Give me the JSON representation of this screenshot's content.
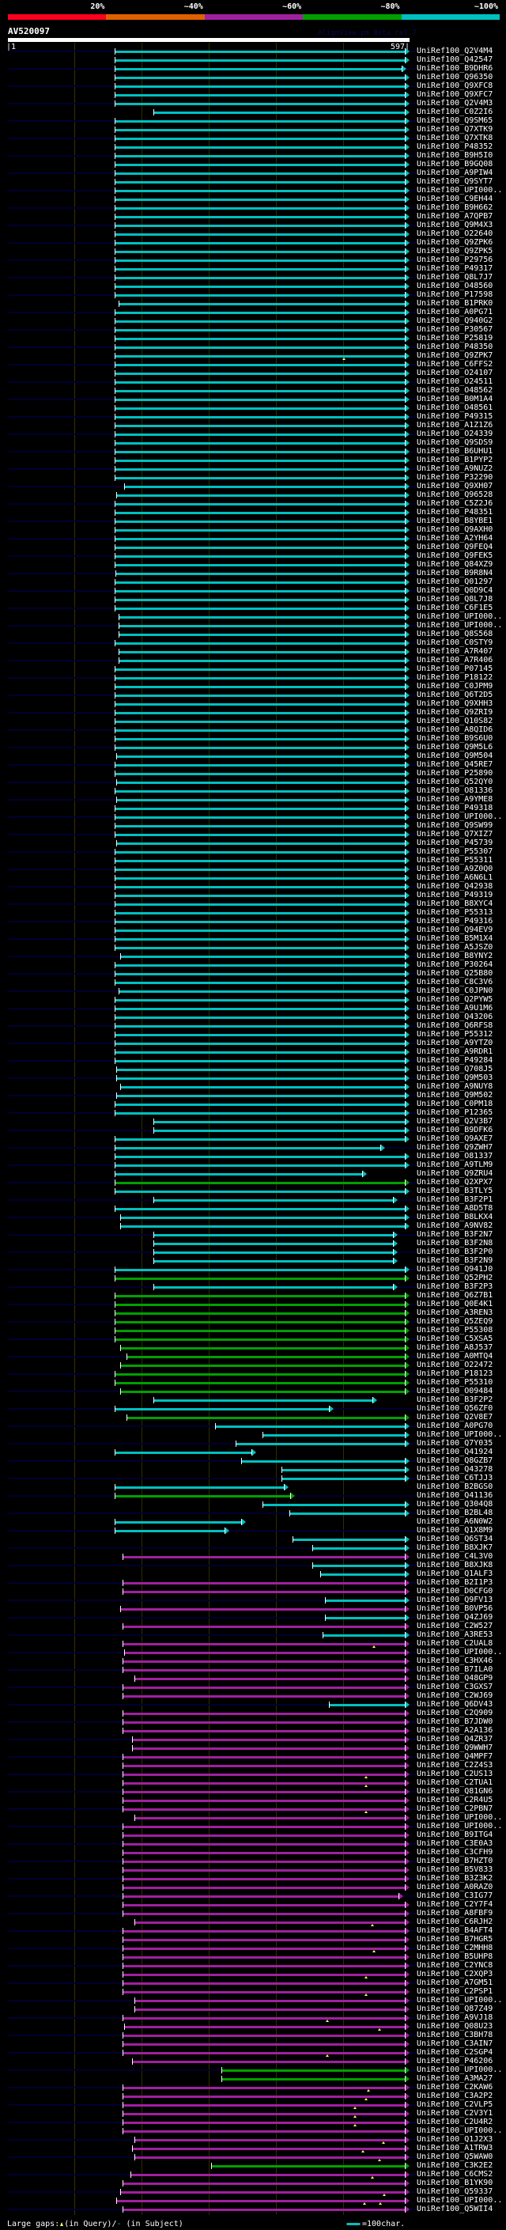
{
  "header": {
    "percent_labels": [
      "20%",
      "~40%",
      "~60%",
      "~80%",
      "~100%"
    ],
    "legend_colors": [
      "#ff0020",
      "#e06000",
      "#a020a0",
      "#00a000",
      "#00c0c0"
    ],
    "query_name": "AV520097",
    "credit": "AlignView.pm Beta rel.7",
    "query_start": "|1",
    "query_end": "597|",
    "query_length": 597
  },
  "colors": {
    "c": "#00c0c0",
    "g": "#00a000",
    "m": "#a020a0"
  },
  "rows": [
    [
      "UniRef100_Q2V4M4",
      "c",
      160,
      591
    ],
    [
      "UniRef100_Q42547",
      "c",
      160,
      591
    ],
    [
      "UniRef100_B9DHR6",
      "c",
      160,
      587
    ],
    [
      "UniRef100_Q96350",
      "c",
      160,
      591
    ],
    [
      "UniRef100_Q9XFC8",
      "c",
      160,
      591
    ],
    [
      "UniRef100_Q9XFC7",
      "c",
      160,
      591
    ],
    [
      "UniRef100_Q2V4M3",
      "c",
      160,
      591
    ],
    [
      "UniRef100_C0Z2I6",
      "c",
      217,
      591
    ],
    [
      "UniRef100_Q9SM65",
      "c",
      160,
      591
    ],
    [
      "UniRef100_Q7XTK9",
      "c",
      160,
      591
    ],
    [
      "UniRef100_Q7XTK8",
      "c",
      160,
      591
    ],
    [
      "UniRef100_P48352",
      "c",
      160,
      591
    ],
    [
      "UniRef100_B9H5I0",
      "c",
      160,
      591
    ],
    [
      "UniRef100_B9GQ08",
      "c",
      160,
      591
    ],
    [
      "UniRef100_A9PIW4",
      "c",
      160,
      591
    ],
    [
      "UniRef100_Q9SYT7",
      "c",
      160,
      591
    ],
    [
      "UniRef100_UPI000..",
      "c",
      160,
      591
    ],
    [
      "UniRef100_C9EH44",
      "c",
      160,
      591
    ],
    [
      "UniRef100_B9H662",
      "c",
      160,
      591
    ],
    [
      "UniRef100_A7QPB7",
      "c",
      160,
      591
    ],
    [
      "UniRef100_Q9M4X3",
      "c",
      160,
      591
    ],
    [
      "UniRef100_O22640",
      "c",
      160,
      591
    ],
    [
      "UniRef100_Q9ZPK6",
      "c",
      160,
      591
    ],
    [
      "UniRef100_Q9ZPK5",
      "c",
      160,
      591
    ],
    [
      "UniRef100_P29756",
      "c",
      160,
      591
    ],
    [
      "UniRef100_P49317",
      "c",
      160,
      591
    ],
    [
      "UniRef100_Q8L7J7",
      "c",
      160,
      591
    ],
    [
      "UniRef100_O48560",
      "c",
      160,
      591
    ],
    [
      "UniRef100_P17598",
      "c",
      160,
      591
    ],
    [
      "UniRef100_B1PRK0",
      "c",
      166,
      591
    ],
    [
      "UniRef100_A0PG71",
      "c",
      160,
      591
    ],
    [
      "UniRef100_Q940G2",
      "c",
      160,
      591
    ],
    [
      "UniRef100_P30567",
      "c",
      160,
      591
    ],
    [
      "UniRef100_P25819",
      "c",
      160,
      591
    ],
    [
      "UniRef100_P48350",
      "c",
      160,
      591
    ],
    [
      "UniRef100_Q9ZPK7",
      "c",
      160,
      591,
      [
        501
      ]
    ],
    [
      "UniRef100_C6FFS2",
      "c",
      160,
      591
    ],
    [
      "UniRef100_O24107",
      "c",
      160,
      591
    ],
    [
      "UniRef100_O24511",
      "c",
      160,
      591
    ],
    [
      "UniRef100_O48562",
      "c",
      160,
      591
    ],
    [
      "UniRef100_B0M1A4",
      "c",
      160,
      591
    ],
    [
      "UniRef100_O48561",
      "c",
      160,
      591
    ],
    [
      "UniRef100_P49315",
      "c",
      160,
      591
    ],
    [
      "UniRef100_A1Z1Z6",
      "c",
      160,
      591
    ],
    [
      "UniRef100_O24339",
      "c",
      160,
      591
    ],
    [
      "UniRef100_Q9SDS9",
      "c",
      160,
      591
    ],
    [
      "UniRef100_B6UHU1",
      "c",
      160,
      591
    ],
    [
      "UniRef100_B1PYP2",
      "c",
      160,
      591
    ],
    [
      "UniRef100_A9NUZ2",
      "c",
      160,
      591
    ],
    [
      "UniRef100_P32290",
      "c",
      160,
      591
    ],
    [
      "UniRef100_Q9XH07",
      "c",
      174,
      591
    ],
    [
      "UniRef100_Q96528",
      "c",
      162,
      591
    ],
    [
      "UniRef100_C5Z2J6",
      "c",
      160,
      591
    ],
    [
      "UniRef100_P48351",
      "c",
      160,
      591
    ],
    [
      "UniRef100_B8YBE1",
      "c",
      160,
      591
    ],
    [
      "UniRef100_Q9AXH0",
      "c",
      160,
      591
    ],
    [
      "UniRef100_A2YH64",
      "c",
      160,
      591
    ],
    [
      "UniRef100_Q9FEQ4",
      "c",
      160,
      591
    ],
    [
      "UniRef100_Q9FEK5",
      "c",
      160,
      591
    ],
    [
      "UniRef100_Q84XZ9",
      "c",
      160,
      591
    ],
    [
      "UniRef100_B9R8N4",
      "c",
      161,
      591
    ],
    [
      "UniRef100_Q01297",
      "c",
      160,
      591
    ],
    [
      "UniRef100_Q0D9C4",
      "c",
      160,
      591
    ],
    [
      "UniRef100_Q8L7J8",
      "c",
      160,
      591
    ],
    [
      "UniRef100_C6F1E5",
      "c",
      160,
      591
    ],
    [
      "UniRef100_UPI000..",
      "c",
      166,
      591
    ],
    [
      "UniRef100_UPI000..",
      "c",
      166,
      591
    ],
    [
      "UniRef100_Q8S568",
      "c",
      166,
      591
    ],
    [
      "UniRef100_C0STY9",
      "c",
      160,
      591
    ],
    [
      "UniRef100_A7R407",
      "c",
      166,
      591
    ],
    [
      "UniRef100_A7R406",
      "c",
      166,
      591
    ],
    [
      "UniRef100_P07145",
      "c",
      160,
      591
    ],
    [
      "UniRef100_P18122",
      "c",
      160,
      591
    ],
    [
      "UniRef100_C0JPM9",
      "c",
      160,
      591
    ],
    [
      "UniRef100_Q6T2D5",
      "c",
      160,
      591
    ],
    [
      "UniRef100_Q9XHH3",
      "c",
      160,
      591
    ],
    [
      "UniRef100_Q9ZRI9",
      "c",
      160,
      591
    ],
    [
      "UniRef100_Q10S82",
      "c",
      160,
      591
    ],
    [
      "UniRef100_A8QID6",
      "c",
      160,
      591
    ],
    [
      "UniRef100_B9S6U0",
      "c",
      160,
      591
    ],
    [
      "UniRef100_Q9M5L6",
      "c",
      160,
      591
    ],
    [
      "UniRef100_Q9M504",
      "c",
      162,
      591
    ],
    [
      "UniRef100_Q45RE7",
      "c",
      160,
      591
    ],
    [
      "UniRef100_P25890",
      "c",
      160,
      591
    ],
    [
      "UniRef100_Q52QY0",
      "c",
      162,
      591
    ],
    [
      "UniRef100_O81336",
      "c",
      160,
      591
    ],
    [
      "UniRef100_A9YME8",
      "c",
      162,
      591
    ],
    [
      "UniRef100_P49318",
      "c",
      160,
      591
    ],
    [
      "UniRef100_UPI000..",
      "c",
      160,
      591
    ],
    [
      "UniRef100_Q9SW99",
      "c",
      160,
      591
    ],
    [
      "UniRef100_Q7XIZ7",
      "c",
      160,
      591
    ],
    [
      "UniRef100_P45739",
      "c",
      162,
      591
    ],
    [
      "UniRef100_P55307",
      "c",
      160,
      591
    ],
    [
      "UniRef100_P55311",
      "c",
      160,
      591
    ],
    [
      "UniRef100_A9Z0Q0",
      "c",
      160,
      591
    ],
    [
      "UniRef100_A6N6L1",
      "c",
      160,
      591
    ],
    [
      "UniRef100_Q42938",
      "c",
      160,
      591
    ],
    [
      "UniRef100_P49319",
      "c",
      160,
      591
    ],
    [
      "UniRef100_B8XYC4",
      "c",
      160,
      591
    ],
    [
      "UniRef100_P55313",
      "c",
      160,
      591
    ],
    [
      "UniRef100_P49316",
      "c",
      160,
      591
    ],
    [
      "UniRef100_Q94EV9",
      "c",
      160,
      591
    ],
    [
      "UniRef100_B5M1X4",
      "c",
      160,
      591
    ],
    [
      "UniRef100_A5JSZ0",
      "c",
      160,
      591
    ],
    [
      "UniRef100_B8YNY2",
      "c",
      168,
      591
    ],
    [
      "UniRef100_P30264",
      "c",
      160,
      591
    ],
    [
      "UniRef100_Q25B80",
      "c",
      160,
      591
    ],
    [
      "UniRef100_C8C3V6",
      "c",
      160,
      591
    ],
    [
      "UniRef100_C0JPN0",
      "c",
      166,
      591
    ],
    [
      "UniRef100_Q2PYW5",
      "c",
      160,
      591
    ],
    [
      "UniRef100_A9U1M6",
      "c",
      160,
      591
    ],
    [
      "UniRef100_Q43206",
      "c",
      160,
      591
    ],
    [
      "UniRef100_Q6RFS8",
      "c",
      160,
      591
    ],
    [
      "UniRef100_P55312",
      "c",
      160,
      591
    ],
    [
      "UniRef100_A9YTZ0",
      "c",
      160,
      591
    ],
    [
      "UniRef100_A9RDR1",
      "c",
      160,
      591
    ],
    [
      "UniRef100_P49284",
      "c",
      160,
      591
    ],
    [
      "UniRef100_Q708J5",
      "c",
      162,
      591
    ],
    [
      "UniRef100_Q9M503",
      "c",
      162,
      591
    ],
    [
      "UniRef100_A9NUY8",
      "c",
      168,
      591
    ],
    [
      "UniRef100_Q9M502",
      "c",
      162,
      591
    ],
    [
      "UniRef100_C0PM18",
      "c",
      160,
      591
    ],
    [
      "UniRef100_P12365",
      "c",
      160,
      591
    ],
    [
      "UniRef100_Q2V3B7",
      "c",
      217,
      591
    ],
    [
      "UniRef100_B9DFK6",
      "c",
      217,
      591
    ],
    [
      "UniRef100_Q9AXE7",
      "c",
      160,
      591
    ],
    [
      "UniRef100_Q9ZWH7",
      "c",
      160,
      555
    ],
    [
      "UniRef100_O81337",
      "c",
      160,
      591
    ],
    [
      "UniRef100_A9TLM9",
      "c",
      160,
      591
    ],
    [
      "UniRef100_Q9ZRU4",
      "c",
      160,
      528
    ],
    [
      "UniRef100_Q2XPX7",
      "g",
      160,
      591
    ],
    [
      "UniRef100_B3TLY5",
      "c",
      160,
      591
    ],
    [
      "UniRef100_B3F2P1",
      "c",
      217,
      574
    ],
    [
      "UniRef100_A8D5T8",
      "c",
      160,
      591
    ],
    [
      "UniRef100_B8LKX4",
      "c",
      168,
      591
    ],
    [
      "UniRef100_A9NV82",
      "c",
      168,
      591
    ],
    [
      "UniRef100_B3F2N7",
      "c",
      217,
      574
    ],
    [
      "UniRef100_B3F2N8",
      "c",
      217,
      574
    ],
    [
      "UniRef100_B3F2P0",
      "c",
      217,
      574
    ],
    [
      "UniRef100_B3F2N9",
      "c",
      217,
      574
    ],
    [
      "UniRef100_Q941J0",
      "c",
      160,
      591
    ],
    [
      "UniRef100_Q52PH2",
      "g",
      160,
      591
    ],
    [
      "UniRef100_B3F2P3",
      "c",
      217,
      574
    ],
    [
      "UniRef100_Q6Z7B1",
      "g",
      160,
      591
    ],
    [
      "UniRef100_Q0E4K1",
      "g",
      160,
      591
    ],
    [
      "UniRef100_A3REN3",
      "g",
      160,
      591
    ],
    [
      "UniRef100_Q5ZEQ9",
      "g",
      160,
      591
    ],
    [
      "UniRef100_P55308",
      "g",
      160,
      591
    ],
    [
      "UniRef100_C5XSA5",
      "g",
      160,
      591
    ],
    [
      "UniRef100_A8J537",
      "g",
      168,
      591
    ],
    [
      "UniRef100_A0MTQ4",
      "g",
      177,
      591
    ],
    [
      "UniRef100_O22472",
      "g",
      168,
      591
    ],
    [
      "UniRef100_P18123",
      "g",
      160,
      591
    ],
    [
      "UniRef100_P55310",
      "g",
      160,
      591
    ],
    [
      "UniRef100_O09484",
      "g",
      168,
      591
    ],
    [
      "UniRef100_B3F2P2",
      "c",
      217,
      543
    ],
    [
      "UniRef100_Q56ZF0",
      "c",
      160,
      478
    ],
    [
      "UniRef100_Q2V8E7",
      "g",
      177,
      591
    ],
    [
      "UniRef100_A0PG70",
      "c",
      309,
      591
    ],
    [
      "UniRef100_UPI000..",
      "c",
      379,
      591
    ],
    [
      "UniRef100_Q7Y035",
      "c",
      339,
      591
    ],
    [
      "UniRef100_Q41924",
      "c",
      160,
      363
    ],
    [
      "UniRef100_Q8GZB7",
      "c",
      348,
      591
    ],
    [
      "UniRef100_Q43278",
      "c",
      408,
      591
    ],
    [
      "UniRef100_C6TJJ3",
      "c",
      408,
      591
    ],
    [
      "UniRef100_B2BGS0",
      "c",
      160,
      411
    ],
    [
      "UniRef100_Q41136",
      "g",
      160,
      421
    ],
    [
      "UniRef100_Q304Q8",
      "c",
      379,
      591
    ],
    [
      "UniRef100_B2BL48",
      "c",
      420,
      591
    ],
    [
      "UniRef100_A6N0W2",
      "c",
      160,
      348
    ],
    [
      "UniRef100_Q1X8M9",
      "c",
      160,
      323
    ],
    [
      "UniRef100_Q6ST34",
      "c",
      424,
      591
    ],
    [
      "UniRef100_B8XJK7",
      "c",
      453,
      591
    ],
    [
      "UniRef100_C4L3V0",
      "m",
      172,
      591
    ],
    [
      "UniRef100_B8XJK8",
      "c",
      453,
      591
    ],
    [
      "UniRef100_Q1ALF3",
      "c",
      465,
      591
    ],
    [
      "UniRef100_B2I1P3",
      "m",
      172,
      591
    ],
    [
      "UniRef100_D0CFG0",
      "m",
      172,
      591
    ],
    [
      "UniRef100_Q9FV13",
      "c",
      472,
      591
    ],
    [
      "UniRef100_B0VP56",
      "m",
      168,
      591
    ],
    [
      "UniRef100_Q4ZJ69",
      "c",
      472,
      591
    ],
    [
      "UniRef100_C2W527",
      "m",
      172,
      591
    ],
    [
      "UniRef100_A3RE53",
      "c",
      469,
      591
    ],
    [
      "UniRef100_C2UAL8",
      "m",
      172,
      591,
      [
        545
      ]
    ],
    [
      "UniRef100_UPI000..",
      "m",
      174,
      591
    ],
    [
      "UniRef100_C3HX46",
      "m",
      172,
      591
    ],
    [
      "UniRef100_B7ILA0",
      "m",
      172,
      591
    ],
    [
      "UniRef100_Q48GP9",
      "m",
      189,
      591
    ],
    [
      "UniRef100_C3GXS7",
      "m",
      172,
      591
    ],
    [
      "UniRef100_C2WJ69",
      "m",
      172,
      591
    ],
    [
      "UniRef100_Q6DV43",
      "c",
      478,
      591
    ],
    [
      "UniRef100_C2Q909",
      "m",
      172,
      591
    ],
    [
      "UniRef100_B7JDW0",
      "m",
      172,
      591
    ],
    [
      "UniRef100_A2A136",
      "m",
      172,
      591
    ],
    [
      "UniRef100_Q4ZR37",
      "m",
      186,
      591
    ],
    [
      "UniRef100_Q9WWH7",
      "m",
      186,
      591
    ],
    [
      "UniRef100_Q4MPF7",
      "m",
      172,
      591
    ],
    [
      "UniRef100_C2Z4S3",
      "m",
      172,
      591
    ],
    [
      "UniRef100_C2US13",
      "m",
      172,
      591,
      [
        533
      ]
    ],
    [
      "UniRef100_C2TUA1",
      "m",
      172,
      591,
      [
        533
      ]
    ],
    [
      "UniRef100_Q81GN6",
      "m",
      172,
      591
    ],
    [
      "UniRef100_C2R4U5",
      "m",
      172,
      591
    ],
    [
      "UniRef100_C2PBN7",
      "m",
      172,
      591,
      [
        533
      ]
    ],
    [
      "UniRef100_UPI000..",
      "m",
      189,
      591
    ],
    [
      "UniRef100_UPI000..",
      "m",
      172,
      591
    ],
    [
      "UniRef100_B9ITG4",
      "m",
      172,
      591
    ],
    [
      "UniRef100_C3E0A3",
      "m",
      172,
      591
    ],
    [
      "UniRef100_C3CFH9",
      "m",
      172,
      591
    ],
    [
      "UniRef100_B7HZT0",
      "m",
      172,
      591
    ],
    [
      "UniRef100_B5V833",
      "m",
      172,
      591
    ],
    [
      "UniRef100_B3Z3K2",
      "m",
      172,
      591
    ],
    [
      "UniRef100_A0RAZ0",
      "m",
      172,
      591
    ],
    [
      "UniRef100_C3IG77",
      "m",
      172,
      582
    ],
    [
      "UniRef100_C2Y7F4",
      "m",
      172,
      591
    ],
    [
      "UniRef100_A8FBF9",
      "m",
      172,
      591
    ],
    [
      "UniRef100_C6RJH2",
      "m",
      189,
      591,
      [
        543
      ]
    ],
    [
      "UniRef100_B4AFT4",
      "m",
      172,
      591
    ],
    [
      "UniRef100_B7HGR5",
      "m",
      172,
      591
    ],
    [
      "UniRef100_C2MHH8",
      "m",
      172,
      591,
      [
        545
      ]
    ],
    [
      "UniRef100_B5UHP8",
      "m",
      172,
      591
    ],
    [
      "UniRef100_C2YNC8",
      "m",
      172,
      591
    ],
    [
      "UniRef100_C2XQP3",
      "m",
      172,
      591,
      [
        533
      ]
    ],
    [
      "UniRef100_A7GM51",
      "m",
      172,
      591
    ],
    [
      "UniRef100_C2PSP1",
      "m",
      172,
      591,
      [
        533
      ]
    ],
    [
      "UniRef100_UPI000..",
      "m",
      189,
      591
    ],
    [
      "UniRef100_Q87Z49",
      "m",
      189,
      591
    ],
    [
      "UniRef100_A9VJ18",
      "m",
      172,
      591,
      [
        476
      ]
    ],
    [
      "UniRef100_Q08U23",
      "m",
      174,
      591,
      [
        553
      ]
    ],
    [
      "UniRef100_C3BH78",
      "m",
      172,
      591
    ],
    [
      "UniRef100_C3AIN7",
      "m",
      172,
      591
    ],
    [
      "UniRef100_C2SGP4",
      "m",
      172,
      591,
      [
        476
      ]
    ],
    [
      "UniRef100_P46206",
      "m",
      186,
      591
    ],
    [
      "UniRef100_UPI000..",
      "g",
      318,
      591
    ],
    [
      "UniRef100_A3MA27",
      "g",
      318,
      591
    ],
    [
      "UniRef100_C2KAW6",
      "m",
      172,
      591,
      [
        537
      ]
    ],
    [
      "UniRef100_C3A2P2",
      "m",
      172,
      591,
      [
        533
      ]
    ],
    [
      "UniRef100_C2VLP5",
      "m",
      172,
      591,
      [
        517
      ]
    ],
    [
      "UniRef100_C2V3Y1",
      "m",
      172,
      591,
      [
        517
      ]
    ],
    [
      "UniRef100_C2U4R2",
      "m",
      172,
      591,
      [
        517
      ]
    ],
    [
      "UniRef100_UPI000..",
      "m",
      172,
      591
    ],
    [
      "UniRef100_Q1J2X3",
      "m",
      189,
      591,
      [
        559
      ]
    ],
    [
      "UniRef100_A1TRW3",
      "m",
      186,
      591,
      [
        529
      ]
    ],
    [
      "UniRef100_Q5WAW0",
      "m",
      189,
      591,
      [
        553
      ]
    ],
    [
      "UniRef100_C3K2E2",
      "g",
      303,
      591
    ],
    [
      "UniRef100_C6CMS2",
      "m",
      183,
      591,
      [
        543
      ]
    ],
    [
      "UniRef100_B1YK90",
      "m",
      172,
      591
    ],
    [
      "UniRef100_Q59337",
      "m",
      168,
      591,
      [
        561
      ]
    ],
    [
      "UniRef100_UPI000..",
      "m",
      162,
      591,
      [
        531,
        555
      ]
    ],
    [
      "UniRef100_Q5WII4",
      "m",
      172,
      591
    ]
  ],
  "footer": {
    "large_gaps_label": "Large gaps:",
    "in_query": "(in Query)/",
    "subject_dash": "-",
    "in_subject": " (in Subject)",
    "scale_label": "=100char."
  }
}
